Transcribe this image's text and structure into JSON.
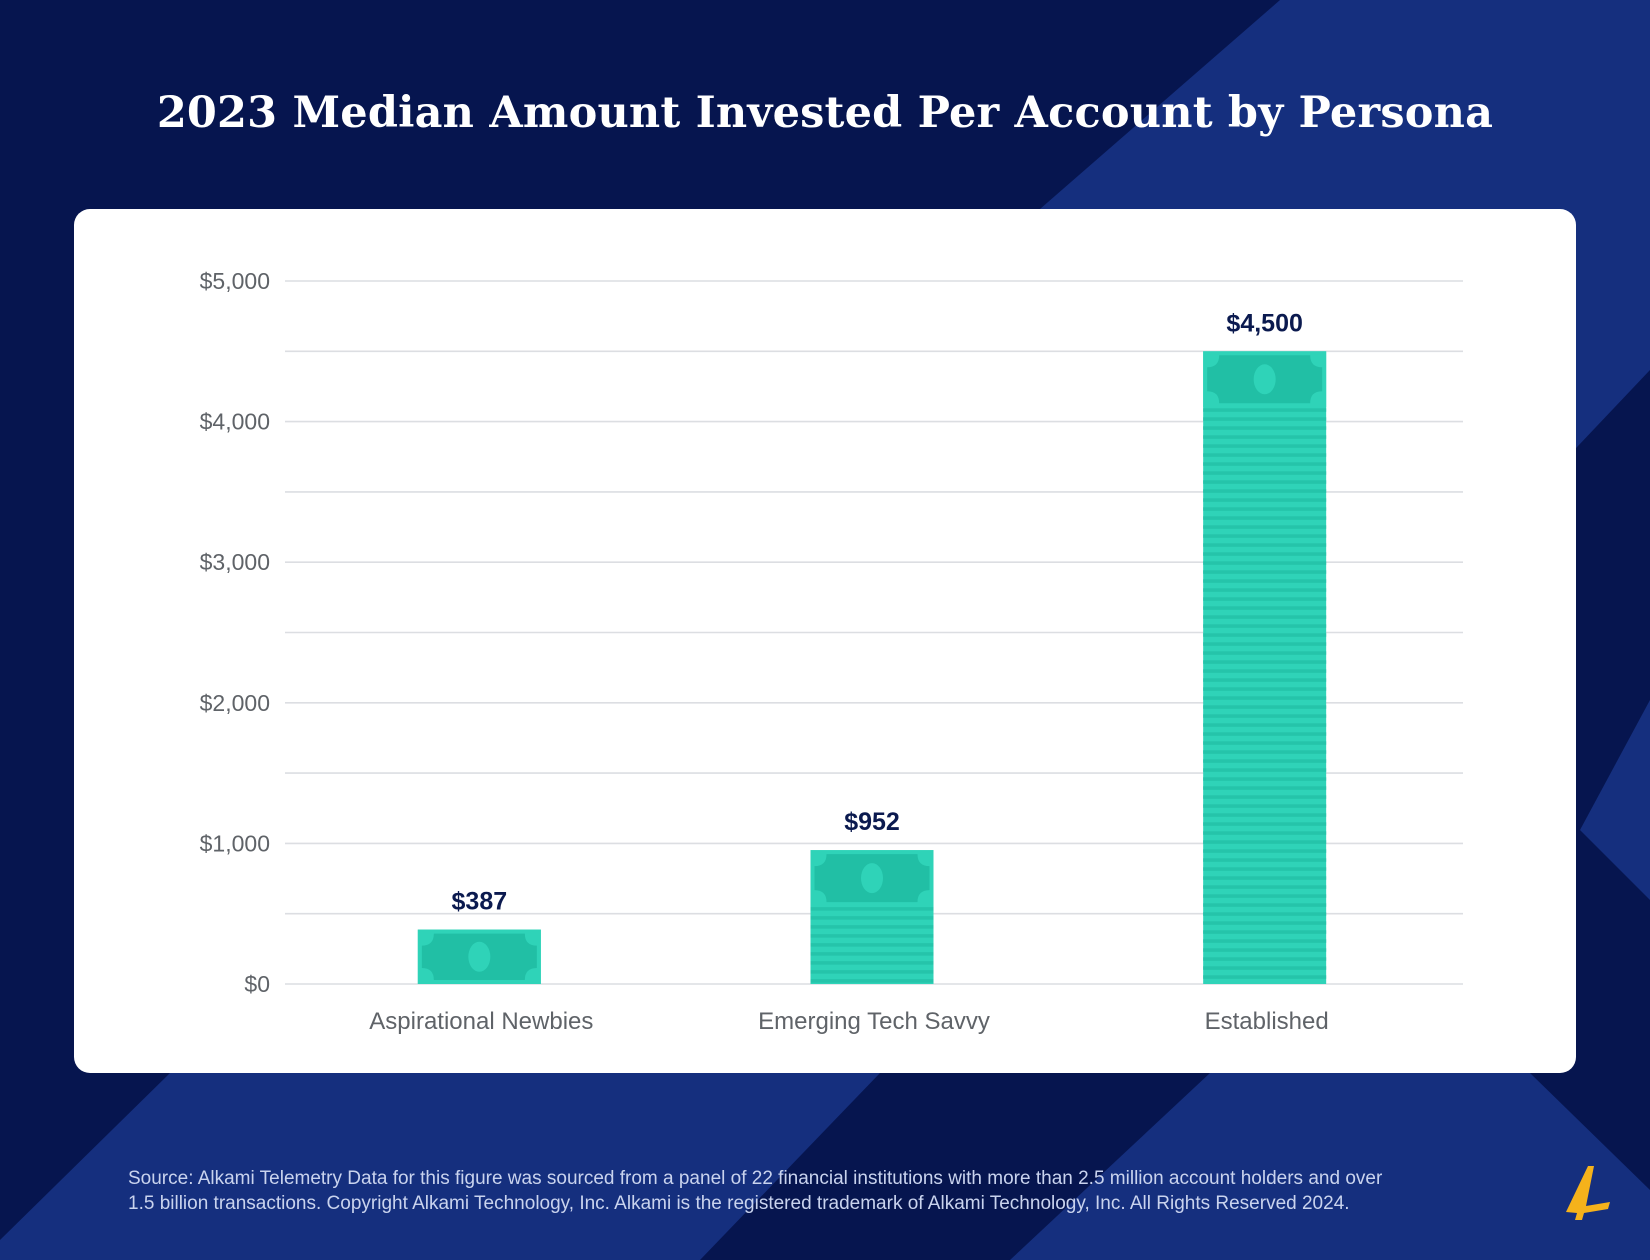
{
  "title": "2023 Median Amount Invested Per Account by Persona",
  "colors": {
    "background": "#06154f",
    "background_shape": "#152f7e",
    "bar": "#2fd3b8",
    "bar_dark": "#21bfa5",
    "bar_stripe": "#25c4aa",
    "value_label": "#0b1a4f",
    "tick_label": "#5f6368",
    "grid": "#dcdee2",
    "logo": "#f5b21b"
  },
  "chart_data": {
    "type": "bar",
    "title": "2023 Median Amount Invested Per Account by Persona",
    "categories": [
      "Aspirational Newbies",
      "Emerging Tech Savvy",
      "Established"
    ],
    "values": [
      387,
      952,
      4500
    ],
    "data_labels": [
      "$387",
      "$952",
      "$4,500"
    ],
    "ylim": [
      0,
      5000
    ],
    "yticks": [
      0,
      1000,
      2000,
      3000,
      4000,
      5000
    ],
    "ytick_labels": [
      "$0",
      "$1,000",
      "$2,000",
      "$3,000",
      "$4,000",
      "$5,000"
    ],
    "minor_grid_step": 500,
    "grid": true,
    "legend": "none",
    "xlabel": "",
    "ylabel": "",
    "bar_style": "banknote-stack"
  },
  "footer": {
    "line1": "Source:  Alkami Telemetry Data for this figure was sourced from a panel of 22 financial institutions with more than 2.5 million account holders and over",
    "line2": "1.5 billion transactions. Copyright Alkami Technology, Inc. Alkami is the registered trademark of Alkami Technology, Inc. All Rights Reserved 2024."
  },
  "logo": {
    "icon": "alkami-logo-icon"
  }
}
